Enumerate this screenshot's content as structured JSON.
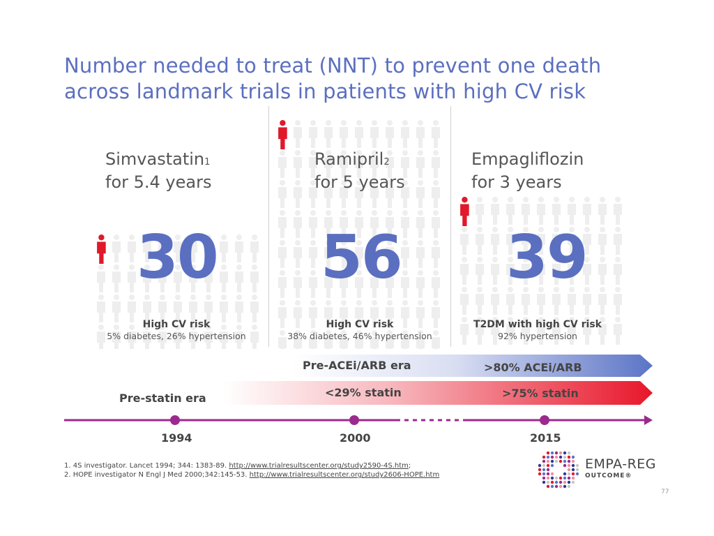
{
  "title": {
    "line1": "Number needed to treat (NNT) to prevent one death",
    "line2": "across landmark trials in patients with high CV risk"
  },
  "trials": [
    {
      "drug": "Simvastatin",
      "ref": "1",
      "duration": "for 5.4 years",
      "nnt": "30",
      "risk_heading": "High CV risk",
      "risk_detail": "5% diabetes, 26% hypertension"
    },
    {
      "drug": "Ramipril",
      "ref": "2",
      "duration": "for 5 years",
      "nnt": "56",
      "risk_heading": "High CV risk",
      "risk_detail": "38% diabetes, 46% hypertension"
    },
    {
      "drug": "Empagliflozin",
      "ref": "",
      "duration": "for 3 years",
      "nnt": "39",
      "risk_heading": "T2DM with high CV risk",
      "risk_detail": "92% hypertension"
    }
  ],
  "eras": {
    "ace_left": "Pre-ACEi/ARB era",
    "ace_right": ">80% ACEi/ARB",
    "statin_left": "<29% statin",
    "statin_right": ">75% statin",
    "pre_statin": "Pre-statin era"
  },
  "timeline": {
    "years": [
      "1994",
      "2000",
      "2015"
    ]
  },
  "footnotes": {
    "line1_text": "1. 4S investigator. Lancet 1994; 344: 1383-89. ",
    "line1_link": "http://www.trialresultscenter.org/study2590-4S.htm",
    "line1_tail": ";",
    "line2_text": "2. HOPE investigator N Engl J Med 2000;342:145-53. ",
    "line2_link": "http://www.trialresultscenter.org/study2606-HOPE.htm"
  },
  "logo": {
    "name": "EMPA-REG",
    "sub": "OUTCOME®"
  },
  "page_number": "77",
  "colors": {
    "title": "#5b6fc0",
    "nnt": "#5b6fc0",
    "accent_red": "#e0192b",
    "ace_arrow": "#5b74c6",
    "statin_arrow": "#e8172b",
    "timeline": "#9b2a8e",
    "person_grey": "#eeeeee"
  }
}
